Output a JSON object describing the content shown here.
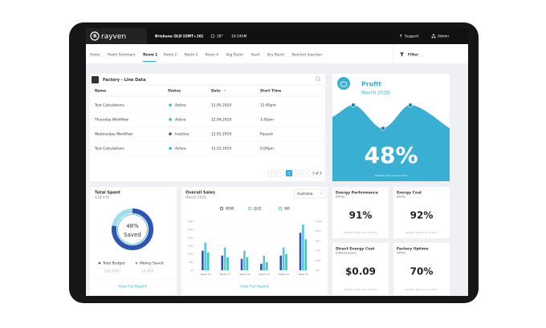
{
  "topbar": {
    "brand": "rayven",
    "location": "Brisbane QLD [GMT+10]",
    "temperature": "28°",
    "time": "10:24AM",
    "support": "Support",
    "admin": "Admin"
  },
  "nav": {
    "items": [
      "Home",
      "Room Summary",
      "Room 1",
      "Room 2",
      "Room 3",
      "Room 4",
      "Veg Room",
      "Vault",
      "Dry Room",
      "Nutrient Injection"
    ],
    "active": 2,
    "filter": "Filter"
  },
  "table": {
    "title": "Factory - Line Data",
    "columns": [
      "Name",
      "Status",
      "Date",
      "Start Time"
    ],
    "rows": [
      {
        "name": "Test Calculations",
        "status": "Active",
        "date": "12.05.2020",
        "start": "12:45pm",
        "color": "#3cb6cf"
      },
      {
        "name": "Thursday Workflow",
        "status": "Active",
        "date": "12.04.2019",
        "start": "1:45am",
        "color": "#3cb6cf"
      },
      {
        "name": "Wednesday Workflow",
        "status": "Inactive",
        "date": "12.03.2019",
        "start": "Paused",
        "color": "#2f55b3"
      },
      {
        "name": "Test Calculations",
        "status": "Active",
        "date": "12.01.2019",
        "start": "5:00pm",
        "color": "#3cb6cf"
      }
    ],
    "page": "1",
    "page_of": "1 of 3"
  },
  "profit": {
    "title": "Profit",
    "period": "March 2020",
    "value": "48%",
    "modified": "Modified: 2019-10-21 12:48:21"
  },
  "total_spent": {
    "title": "Total Spent",
    "amount": "$18,570",
    "percent": "48%",
    "caption": "Saved",
    "legend": [
      {
        "label": "Total Budget",
        "amount": "$50,000"
      },
      {
        "label": "Money Saved",
        "amount": "$9,480"
      }
    ],
    "link": "View Full Report"
  },
  "sales": {
    "region": "Australia",
    "link": "View Full Report"
  },
  "kpis": [
    {
      "title": "Energy Performance",
      "subtitle": "(MTD)",
      "value": "91%",
      "modified": "Modified: 2019-10-21 12:48:21"
    },
    {
      "title": "Energy Cost",
      "subtitle": "(MTD)",
      "value": "92%",
      "modified": "Modified: 2019-10-21 12:48:21"
    },
    {
      "title": "Direct Energy Cost",
      "subtitle": "(kWh/product)",
      "value": "$0.09",
      "modified": "Modified: 2019-10-21 12:48:21"
    },
    {
      "title": "Factory Uptime",
      "subtitle": "(MTD)",
      "value": "70%",
      "modified": "Modified: 2019-10-21 12:48:21"
    }
  ],
  "chart_data": {
    "type": "bar",
    "title": "Overall Sales",
    "subtitle": "March 2020",
    "categories": [
      "Week 16",
      "Week 17",
      "Week 18",
      "Week 19",
      "Week 20",
      "Week 21"
    ],
    "series": [
      {
        "name": "NSW",
        "color": "#2f55b3",
        "values": [
          12,
          9,
          7,
          4,
          9,
          23
        ]
      },
      {
        "name": "QLD",
        "color": "#55c4e6",
        "values": [
          17,
          14,
          12,
          9,
          14,
          28
        ]
      },
      {
        "name": "WA",
        "color": "#3cc7b3",
        "values": [
          11,
          8,
          8,
          5,
          10,
          19
        ]
      }
    ],
    "ylim": [
      0,
      30
    ],
    "yticks": [
      {
        "value": 0,
        "label": "$0"
      },
      {
        "value": 5,
        "label": "$5k"
      },
      {
        "value": 10,
        "label": "$10k"
      },
      {
        "value": 15,
        "label": "$15k"
      },
      {
        "value": 20,
        "label": "$20k"
      },
      {
        "value": 25,
        "label": "$25k"
      },
      {
        "value": 30,
        "label": "$30k"
      }
    ],
    "y2lim": [
      0,
      100
    ],
    "y2ticks": [
      {
        "value": 0,
        "label": "0%"
      },
      {
        "value": 20,
        "label": "20%"
      },
      {
        "value": 40,
        "label": "40%"
      },
      {
        "value": 60,
        "label": "60%"
      },
      {
        "value": 80,
        "label": "80%"
      },
      {
        "value": 100,
        "label": "100%"
      }
    ],
    "grid": true
  }
}
